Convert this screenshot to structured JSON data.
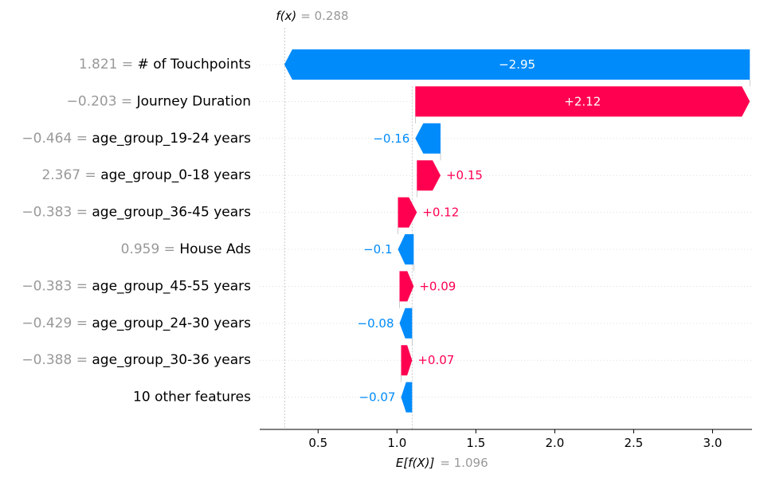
{
  "chart_data": {
    "type": "waterfall",
    "fx_label": "f(x)",
    "fx_value": "= 0.288",
    "efx_label": "E[f(X)]",
    "efx_value": "= 1.096",
    "base_value": 1.096,
    "output_value": 0.288,
    "xlim": [
      0.13,
      3.25
    ],
    "xticks": [
      0.5,
      1.0,
      1.5,
      2.0,
      2.5,
      3.0
    ],
    "xtick_labels": [
      "0.5",
      "1.0",
      "1.5",
      "2.0",
      "2.5",
      "3.0"
    ],
    "colors": {
      "positive": "#ff0051",
      "negative": "#008bfb",
      "muted": "#999999",
      "text": "#000000"
    },
    "features": [
      {
        "value": "1.821 =",
        "name": "# of Touchpoints",
        "shap": -2.95,
        "label": "−2.95",
        "label_inside": true
      },
      {
        "value": "−0.203 =",
        "name": "Journey Duration",
        "shap": 2.12,
        "label": "+2.12",
        "label_inside": true
      },
      {
        "value": "−0.464 =",
        "name": "age_group_19-24 years",
        "shap": -0.16,
        "label": "−0.16",
        "label_inside": false
      },
      {
        "value": "2.367 =",
        "name": "age_group_0-18 years",
        "shap": 0.15,
        "label": "+0.15",
        "label_inside": false
      },
      {
        "value": "−0.383 =",
        "name": "age_group_36-45 years",
        "shap": 0.12,
        "label": "+0.12",
        "label_inside": false
      },
      {
        "value": "0.959 =",
        "name": "House Ads",
        "shap": -0.1,
        "label": "−0.1",
        "label_inside": false
      },
      {
        "value": "−0.383 =",
        "name": "age_group_45-55 years",
        "shap": 0.09,
        "label": "+0.09",
        "label_inside": false
      },
      {
        "value": "−0.429 =",
        "name": "age_group_24-30 years",
        "shap": -0.08,
        "label": "−0.08",
        "label_inside": false
      },
      {
        "value": "−0.388 =",
        "name": "age_group_30-36 years",
        "shap": 0.07,
        "label": "+0.07",
        "label_inside": false
      },
      {
        "value": "",
        "name": "10 other features",
        "shap": -0.07,
        "label": "−0.07",
        "label_inside": false
      }
    ]
  }
}
